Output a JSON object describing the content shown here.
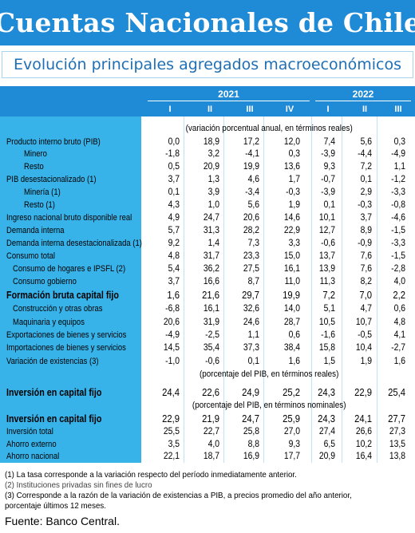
{
  "title": "Cuentas Nacionales de Chile",
  "subtitle": "Evolución principales agregados macroeconómicos",
  "years": [
    "2021",
    "2022"
  ],
  "quarters_2021": [
    "I",
    "II",
    "III",
    "IV"
  ],
  "quarters_2022": [
    "I",
    "II",
    "III"
  ],
  "notes": {
    "variation": "(variación porcentual anual, en términos reales)",
    "pct_real": "(porcentaje del PIB, en términos reales)",
    "pct_nominal": "(porcentaje del PIB, en términos nominales)"
  },
  "rows": [
    {
      "label": "Producto interno bruto (PIB)",
      "values": [
        "0,0",
        "18,9",
        "17,2",
        "12,0",
        "7,4",
        "5,6",
        "0,3"
      ]
    },
    {
      "label": "Minero",
      "values": [
        "-1,8",
        "3,2",
        "-4,1",
        "0,3",
        "-3,9",
        "-4,4",
        "-4,9"
      ]
    },
    {
      "label": "Resto",
      "values": [
        "0,5",
        "20,9",
        "19,9",
        "13,6",
        "9,3",
        "7,2",
        "1,1"
      ]
    },
    {
      "label": "PIB desestacionalizado (1)",
      "values": [
        "3,7",
        "1,3",
        "4,6",
        "1,7",
        "-0,7",
        "0,1",
        "-1,2"
      ]
    },
    {
      "label": "Minería (1)",
      "values": [
        "0,1",
        "3,9",
        "-3,4",
        "-0,3",
        "-3,9",
        "2,9",
        "-3,3"
      ]
    },
    {
      "label": "Resto (1)",
      "values": [
        "4,3",
        "1,0",
        "5,6",
        "1,9",
        "0,1",
        "-0,3",
        "-0,8"
      ]
    },
    {
      "label": "Ingreso nacional bruto disponible real",
      "values": [
        "4,9",
        "24,7",
        "20,6",
        "14,6",
        "10,1",
        "3,7",
        "-4,6"
      ]
    },
    {
      "label": "Demanda interna",
      "values": [
        "5,7",
        "31,3",
        "28,2",
        "22,9",
        "12,7",
        "8,9",
        "-1,5"
      ]
    },
    {
      "label": "Demanda interna desestacionalizada (1)",
      "values": [
        "9,2",
        "1,4",
        "7,3",
        "3,3",
        "-0,6",
        "-0,9",
        "-3,3"
      ]
    },
    {
      "label": "Consumo total",
      "values": [
        "4,8",
        "31,7",
        "23,3",
        "15,0",
        "13,7",
        "7,6",
        "-1,5"
      ]
    },
    {
      "label": "Consumo de hogares e IPSFL (2)",
      "values": [
        "5,4",
        "36,2",
        "27,5",
        "16,1",
        "13,9",
        "7,6",
        "-2,8"
      ]
    },
    {
      "label": "Consumo gobierno",
      "values": [
        "3,7",
        "16,6",
        "8,7",
        "11,0",
        "11,3",
        "8,2",
        "4,0"
      ]
    },
    {
      "label": "Formación bruta capital fijo",
      "values": [
        "1,6",
        "21,6",
        "29,7",
        "19,9",
        "7,2",
        "7,0",
        "2,2"
      ]
    },
    {
      "label": "Construcción y otras obras",
      "values": [
        "-6,8",
        "16,1",
        "32,6",
        "14,0",
        "5,1",
        "4,7",
        "0,6"
      ]
    },
    {
      "label": "Maquinaria y equipos",
      "values": [
        "20,6",
        "31,9",
        "24,6",
        "28,7",
        "10,5",
        "10,7",
        "4,8"
      ]
    },
    {
      "label": "Exportaciones de bienes y servicios",
      "values": [
        "-4,9",
        "-2,5",
        "1,1",
        "0,6",
        "-1,6",
        "-0,5",
        "4,1"
      ]
    },
    {
      "label": "Importaciones de bienes y servicios",
      "values": [
        "14,5",
        "35,4",
        "37,3",
        "38,4",
        "15,8",
        "10,4",
        "-2,7"
      ]
    },
    {
      "label": "Variación de existencias (3)",
      "values": [
        "-1,0",
        "-0,6",
        "0,1",
        "1,6",
        "1,5",
        "1,9",
        "1,6"
      ]
    },
    {
      "label": "Inversión en capital fijo",
      "values": [
        "24,4",
        "22,6",
        "24,9",
        "25,2",
        "24,3",
        "22,9",
        "25,4"
      ]
    },
    {
      "label": "Inversión en capital fijo",
      "values": [
        "22,9",
        "21,9",
        "24,7",
        "25,9",
        "24,3",
        "24,1",
        "27,7"
      ]
    },
    {
      "label": "Inversión total",
      "values": [
        "25,5",
        "22,7",
        "25,8",
        "27,0",
        "27,4",
        "26,6",
        "27,3"
      ]
    },
    {
      "label": "Ahorro externo",
      "values": [
        "3,5",
        "4,0",
        "8,8",
        "9,3",
        "6,5",
        "10,2",
        "13,5"
      ]
    },
    {
      "label": "Ahorro nacional",
      "values": [
        "22,1",
        "18,7",
        "16,9",
        "17,7",
        "20,9",
        "16,4",
        "13,8"
      ]
    }
  ],
  "footnotes": [
    "(1) La tasa corresponde a la variación respecto del período inmediatamente anterior.",
    "(2) Instituciones privadas sin fines de lucro",
    "(3) Corresponde a la razón de la variación de existencias a PIB, a precios promedio del año anterior,",
    "porcentaje últimos 12 meses."
  ],
  "source": "Fuente: Banco Central."
}
